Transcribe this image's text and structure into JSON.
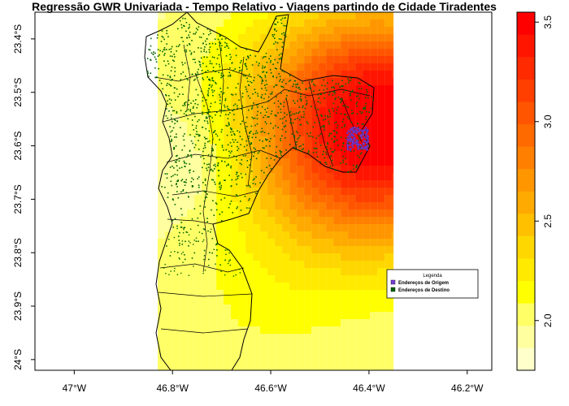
{
  "title": "Regressão GWR Univariada - Tempo Relativo - Viagens partindo de Cidade Tiradentes",
  "map": {
    "x_ticks": [
      {
        "value": -47.0,
        "label": "47°W"
      },
      {
        "value": -46.8,
        "label": "46.8°W"
      },
      {
        "value": -46.6,
        "label": "46.6°W"
      },
      {
        "value": -46.4,
        "label": "46.4°W"
      },
      {
        "value": -46.2,
        "label": "46.2°W"
      }
    ],
    "y_ticks": [
      {
        "value": -23.4,
        "label": "23.4°S"
      },
      {
        "value": -23.5,
        "label": "23.5°S"
      },
      {
        "value": -23.6,
        "label": "23.6°S"
      },
      {
        "value": -23.7,
        "label": "23.7°S"
      },
      {
        "value": -23.8,
        "label": "23.8°S"
      },
      {
        "value": -23.9,
        "label": "23.9°S"
      },
      {
        "value": -24.0,
        "label": "24°S"
      }
    ],
    "xlim": [
      -47.08,
      -46.15
    ],
    "ylim": [
      -24.02,
      -23.35
    ],
    "raster_xlim": [
      -46.83,
      -46.35
    ],
    "hotspot": {
      "lon": -46.39,
      "lat": -23.59
    }
  },
  "colorbar": {
    "min": 1.75,
    "max": 3.55,
    "ticks": [
      {
        "value": 2.0,
        "label": "2.0"
      },
      {
        "value": 2.5,
        "label": "2.5"
      },
      {
        "value": 3.0,
        "label": "3.0"
      },
      {
        "value": 3.5,
        "label": "3.5"
      }
    ],
    "colors": [
      "#FFFFCC",
      "#FFFFA0",
      "#FFFF66",
      "#FFFF00",
      "#FFEA00",
      "#FFD700",
      "#FFC000",
      "#FFAA00",
      "#FF9600",
      "#FF8000",
      "#FF6A00",
      "#FF5500",
      "#FF3F00",
      "#FF2A00",
      "#FF1500",
      "#FF0000"
    ]
  },
  "legend": {
    "title": "Legenda",
    "items": [
      {
        "label": "Endereços de Origem",
        "color": "#7B3FD9"
      },
      {
        "label": "Endereços de Destino",
        "color": "#006400"
      }
    ]
  }
}
